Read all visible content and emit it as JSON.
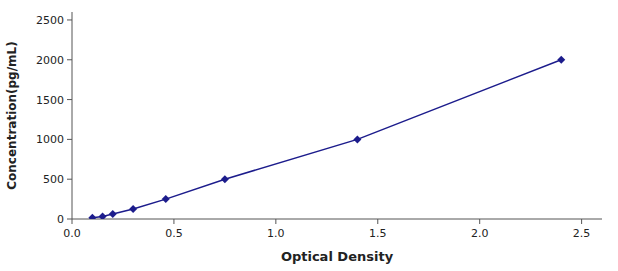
{
  "chart_data": {
    "type": "line",
    "x": [
      0.1,
      0.15,
      0.2,
      0.3,
      0.46,
      0.75,
      1.4,
      2.4
    ],
    "values": [
      15.6,
      31.2,
      62.5,
      125,
      250,
      500,
      1000,
      2000
    ],
    "color": "#1C1C8C",
    "marker": "diamond",
    "line_style": "solid",
    "xlabel": "Optical Density",
    "ylabel": "Concentration(pg/mL)",
    "xlim": [
      0.0,
      2.6
    ],
    "ylim": [
      0,
      2600
    ],
    "xticks": [
      {
        "value": 0,
        "label": "0.0"
      },
      0.5,
      {
        "value": 1.0,
        "label": "1.0"
      },
      1.5,
      {
        "value": 2.0,
        "label": "2.0"
      },
      2.5
    ],
    "yticks": [
      0,
      500,
      1000,
      1500,
      2000,
      2500
    ],
    "grid": false
  }
}
